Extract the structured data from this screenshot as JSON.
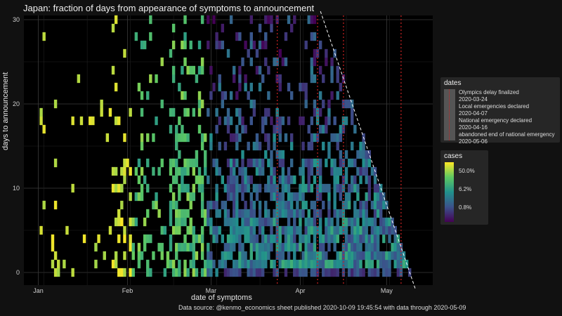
{
  "chart_data": {
    "type": "heatmap",
    "title": "Japan: fraction of days from appearance of symptoms to announcement",
    "xlabel": "date of symptoms",
    "ylabel": "days to announcement",
    "x_ticks": [
      "Jan",
      "Feb",
      "Mar",
      "Apr",
      "May"
    ],
    "x_tick_dates": [
      "2020-01-01",
      "2020-02-01",
      "2020-03-01",
      "2020-04-01",
      "2020-05-01"
    ],
    "y_ticks": [
      0,
      10,
      20,
      30
    ],
    "xlim": [
      "2019-12-27",
      "2020-05-17"
    ],
    "ylim": [
      -1.5,
      30.5
    ],
    "data_end_date": "2020-05-09",
    "grid": true,
    "colorscale": "viridis",
    "color_scale_type": "log",
    "legend": {
      "dates": {
        "title": "dates",
        "entries": [
          {
            "label": "Olympics delay finalized",
            "date": "2020-03-24"
          },
          {
            "label": "Local emergencies declared",
            "date": "2020-04-07"
          },
          {
            "label": "National emergency declared",
            "date": "2020-04-16"
          },
          {
            "label": "abandoned end of national emergency",
            "date": "2020-05-06"
          }
        ],
        "line_color": "#cc2222",
        "line_style": "dotted"
      },
      "cases": {
        "title": "cases",
        "ticks": [
          "50.0%",
          "6.2%",
          "0.8%"
        ]
      }
    },
    "cutoff_line_style": "dashed",
    "cutoff_line_color": "#ffffff"
  },
  "caption": "Data source: @kenmo_economics sheet published 2020-10-09 19:45:54 with data through 2020-05-09"
}
